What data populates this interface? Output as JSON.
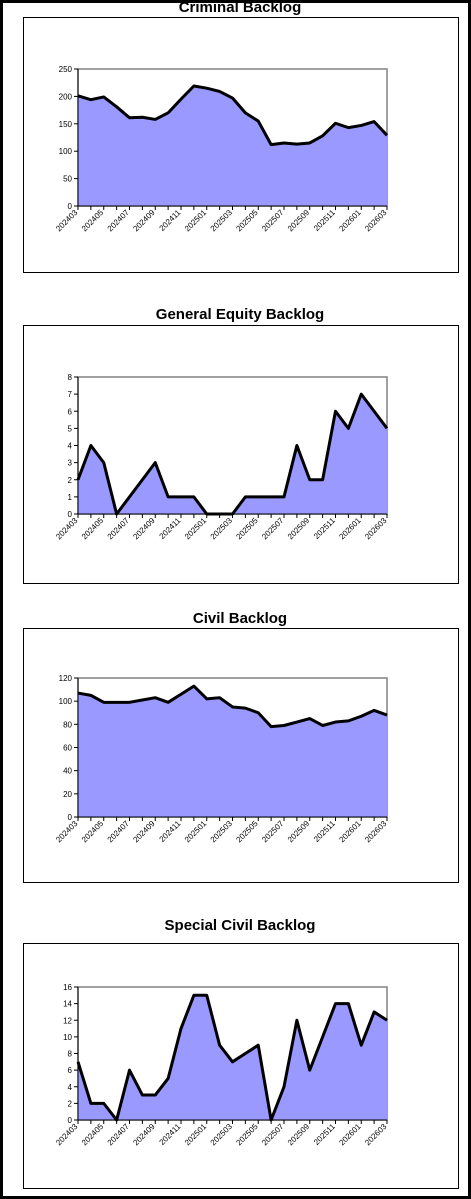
{
  "colors": {
    "area_fill": "#9999ff",
    "line": "#000000",
    "plot_border": "#808080",
    "frame": "#000000"
  },
  "chart_data": [
    {
      "type": "area",
      "title": "Criminal Backlog",
      "x": [
        "202403",
        "202404",
        "202405",
        "202406",
        "202407",
        "202408",
        "202409",
        "202410",
        "202411",
        "202412",
        "202501",
        "202502",
        "202503",
        "202504",
        "202505",
        "202506",
        "202507",
        "202508",
        "202509",
        "202510",
        "202511",
        "202512",
        "202601",
        "202602",
        "202603"
      ],
      "x_tick_labels": [
        "202403",
        "202405",
        "202407",
        "202409",
        "202411",
        "202501",
        "202503",
        "202505",
        "202507",
        "202509",
        "202511",
        "202601",
        "202603"
      ],
      "values": [
        201,
        194,
        199,
        181,
        161,
        162,
        158,
        170,
        195,
        219,
        215,
        209,
        197,
        170,
        155,
        112,
        115,
        113,
        115,
        128,
        151,
        143,
        147,
        154,
        129
      ],
      "ylim": [
        0,
        250
      ],
      "yticks": [
        0,
        50,
        100,
        150,
        200,
        250
      ],
      "grid": false
    },
    {
      "type": "area",
      "title": "General Equity Backlog",
      "x": [
        "202403",
        "202404",
        "202405",
        "202406",
        "202407",
        "202408",
        "202409",
        "202410",
        "202411",
        "202412",
        "202501",
        "202502",
        "202503",
        "202504",
        "202505",
        "202506",
        "202507",
        "202508",
        "202509",
        "202510",
        "202511",
        "202512",
        "202601",
        "202602",
        "202603"
      ],
      "x_tick_labels": [
        "202403",
        "202405",
        "202407",
        "202409",
        "202411",
        "202501",
        "202503",
        "202505",
        "202507",
        "202509",
        "202511",
        "202601",
        "202603"
      ],
      "values": [
        2,
        4,
        3,
        0,
        1,
        2,
        3,
        1,
        1,
        1,
        0,
        0,
        0,
        1,
        1,
        1,
        1,
        4,
        2,
        2,
        6,
        5,
        7,
        6,
        5
      ],
      "ylim": [
        0,
        8
      ],
      "yticks": [
        0,
        1,
        2,
        3,
        4,
        5,
        6,
        7,
        8
      ],
      "grid": false
    },
    {
      "type": "area",
      "title": "Civil Backlog",
      "x": [
        "202403",
        "202404",
        "202405",
        "202406",
        "202407",
        "202408",
        "202409",
        "202410",
        "202411",
        "202412",
        "202501",
        "202502",
        "202503",
        "202504",
        "202505",
        "202506",
        "202507",
        "202508",
        "202509",
        "202510",
        "202511",
        "202512",
        "202601",
        "202602",
        "202603"
      ],
      "x_tick_labels": [
        "202403",
        "202405",
        "202407",
        "202409",
        "202411",
        "202501",
        "202503",
        "202505",
        "202507",
        "202509",
        "202511",
        "202601",
        "202603"
      ],
      "values": [
        107,
        105,
        99,
        99,
        99,
        101,
        103,
        99,
        106,
        113,
        102,
        103,
        95,
        94,
        90,
        78,
        79,
        82,
        85,
        79,
        82,
        83,
        87,
        92,
        88
      ],
      "ylim": [
        0,
        120
      ],
      "yticks": [
        0,
        20,
        40,
        60,
        80,
        100,
        120
      ],
      "grid": false
    },
    {
      "type": "area",
      "title": "Special Civil Backlog",
      "x": [
        "202403",
        "202404",
        "202405",
        "202406",
        "202407",
        "202408",
        "202409",
        "202410",
        "202411",
        "202412",
        "202501",
        "202502",
        "202503",
        "202504",
        "202505",
        "202506",
        "202507",
        "202508",
        "202509",
        "202510",
        "202511",
        "202512",
        "202601",
        "202602",
        "202603"
      ],
      "x_tick_labels": [
        "202403",
        "202405",
        "202407",
        "202409",
        "202411",
        "202501",
        "202503",
        "202505",
        "202507",
        "202509",
        "202511",
        "202601",
        "202603"
      ],
      "values": [
        7,
        2,
        2,
        0,
        6,
        3,
        3,
        5,
        11,
        15,
        15,
        9,
        7,
        8,
        9,
        0,
        4,
        12,
        6,
        10,
        14,
        14,
        9,
        13,
        12
      ],
      "ylim": [
        0,
        16
      ],
      "yticks": [
        0,
        2,
        4,
        6,
        8,
        10,
        12,
        14,
        16
      ],
      "grid": false
    }
  ]
}
